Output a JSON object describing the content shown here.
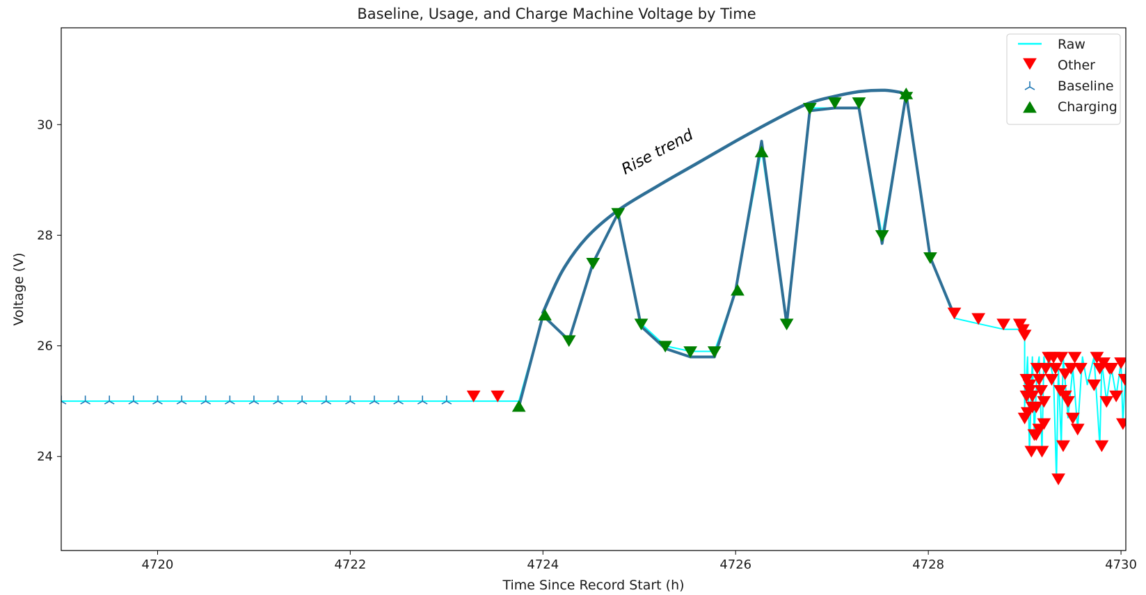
{
  "chart_data": {
    "type": "line",
    "title": "Baseline, Usage, and Charge Machine Voltage by Time",
    "xlabel": "Time Since Record Start (h)",
    "ylabel": "Voltage (V)",
    "xlim": [
      4719.0,
      4730.05
    ],
    "ylim": [
      22.3,
      31.75
    ],
    "xticks": [
      4720,
      4722,
      4724,
      4726,
      4728,
      4730
    ],
    "yticks": [
      24,
      26,
      28,
      30
    ],
    "grid": false,
    "legend_position": "top-right",
    "legend": [
      {
        "label": "Raw",
        "marker": "line",
        "color": "#00ffff"
      },
      {
        "label": "Other",
        "marker": "triangle-down",
        "color": "#ff0000"
      },
      {
        "label": "Baseline",
        "marker": "tri-up",
        "color": "#1f77b4"
      },
      {
        "label": "Charging",
        "marker": "triangle-up",
        "color": "#008000"
      }
    ],
    "annotation": {
      "text": "Rise trend"
    },
    "series": [
      {
        "name": "Raw",
        "style": "line",
        "color": "#00ffff",
        "x": [
          4719.0,
          4723.75,
          4724.0,
          4724.27,
          4724.52,
          4724.78,
          4725.02,
          4725.27,
          4725.53,
          4725.78,
          4726.0,
          4726.27,
          4726.53,
          4726.77,
          4727.03,
          4727.28,
          4727.52,
          4727.77,
          4728.02,
          4728.27,
          4728.52,
          4728.78,
          4728.95,
          4729.0,
          4729.0,
          4729.03,
          4729.05,
          4729.08,
          4729.1,
          4729.13,
          4729.15,
          4729.18,
          4729.2,
          4729.22,
          4729.25,
          4729.3,
          4729.33,
          4729.35,
          4729.38,
          4729.4,
          4729.45,
          4729.5,
          4729.55,
          4729.6,
          4729.65,
          4729.72,
          4729.78,
          4729.8,
          4729.85,
          4729.9,
          4729.95,
          4730.0,
          4730.02,
          4730.05
        ],
        "y": [
          25.0,
          25.0,
          26.55,
          26.1,
          27.5,
          28.4,
          26.4,
          26.0,
          25.9,
          25.9,
          27.0,
          29.55,
          26.4,
          30.3,
          30.3,
          30.3,
          28.0,
          30.5,
          27.6,
          26.5,
          26.4,
          26.3,
          26.3,
          26.3,
          24.9,
          25.8,
          24.1,
          25.8,
          24.4,
          25.6,
          25.8,
          24.1,
          25.8,
          25.5,
          25.8,
          25.4,
          23.6,
          25.6,
          24.2,
          25.8,
          24.7,
          25.6,
          24.5,
          25.8,
          25.3,
          25.8,
          24.2,
          25.7,
          25.0,
          25.6,
          25.1,
          25.7,
          24.6,
          25.6
        ]
      },
      {
        "name": "Other",
        "style": "triangle-down",
        "color": "#ff0000",
        "x": [
          4723.28,
          4723.53,
          4728.27,
          4728.52,
          4728.78,
          4728.95,
          4728.98,
          4729.0,
          4729.02,
          4729.03,
          4729.05,
          4729.07,
          4729.08,
          4729.1,
          4729.12,
          4729.13,
          4729.15,
          4729.17,
          4729.18,
          4729.2,
          4729.22,
          4729.25,
          4729.28,
          4729.3,
          4729.32,
          4729.35,
          4729.37,
          4729.38,
          4729.4,
          4729.42,
          4729.45,
          4729.48,
          4729.5,
          4729.52,
          4729.55,
          4729.58,
          4729.72,
          4729.75,
          4729.78,
          4729.8,
          4729.82,
          4729.85,
          4729.88,
          4729.9,
          4729.95,
          4730.0,
          4730.02,
          4730.04,
          4729.0,
          4729.05,
          4729.12,
          4729.2,
          4729.42,
          4729.02,
          4729.08,
          4729.15
        ],
        "y": [
          25.1,
          25.1,
          26.6,
          26.5,
          26.4,
          26.4,
          26.3,
          26.2,
          25.4,
          24.8,
          25.3,
          24.1,
          25.1,
          24.4,
          24.9,
          25.6,
          24.5,
          25.2,
          24.1,
          25.0,
          25.6,
          25.8,
          25.4,
          25.8,
          25.6,
          23.6,
          25.2,
          25.8,
          24.2,
          25.5,
          25.0,
          25.6,
          24.7,
          25.8,
          24.5,
          25.6,
          25.3,
          25.8,
          25.6,
          24.2,
          25.7,
          25.0,
          25.6,
          25.6,
          25.1,
          25.7,
          24.6,
          25.4,
          24.7,
          25.2,
          24.4,
          24.6,
          25.1,
          25.1,
          24.9,
          25.4
        ]
      },
      {
        "name": "Baseline",
        "style": "tri-up",
        "color": "#1f77b4",
        "x": [
          4719.0,
          4719.25,
          4719.5,
          4719.75,
          4720.0,
          4720.25,
          4720.5,
          4720.75,
          4721.0,
          4721.25,
          4721.5,
          4721.75,
          4722.0,
          4722.25,
          4722.5,
          4722.75,
          4723.0
        ],
        "y": [
          25.0,
          25.0,
          25.0,
          25.0,
          25.0,
          25.0,
          25.0,
          25.0,
          25.0,
          25.0,
          25.0,
          25.0,
          25.0,
          25.0,
          25.0,
          25.0,
          25.0
        ]
      },
      {
        "name": "Charging",
        "style": "triangle-up",
        "color": "#008000",
        "x": [
          4723.75,
          4724.02,
          4726.02,
          4726.27,
          4727.77
        ],
        "y": [
          24.9,
          26.55,
          27.0,
          29.5,
          30.55
        ]
      },
      {
        "name": "Charging (down markers)",
        "style": "triangle-down",
        "color": "#008000",
        "x": [
          4724.27,
          4724.52,
          4724.78,
          4725.02,
          4725.27,
          4725.53,
          4725.78,
          4726.53,
          4726.77,
          4727.03,
          4727.28,
          4727.52,
          4727.77,
          4728.02
        ],
        "y": [
          26.1,
          27.5,
          28.4,
          26.4,
          26.0,
          25.9,
          25.9,
          26.4,
          30.3,
          30.4,
          30.4,
          28.0,
          30.5,
          27.6
        ]
      },
      {
        "name": "Highlighted usage",
        "style": "thick-line",
        "color": "#2e6f96",
        "x": [
          4723.75,
          4724.0,
          4724.27,
          4724.52,
          4724.78,
          4725.02,
          4725.27,
          4725.53,
          4725.78,
          4726.0,
          4726.27,
          4726.53,
          4726.77,
          4727.03,
          4727.28,
          4727.52,
          4727.77,
          4728.02,
          4728.27
        ],
        "y": [
          24.9,
          26.55,
          26.1,
          27.5,
          28.4,
          26.35,
          25.95,
          25.8,
          25.8,
          27.0,
          29.7,
          26.4,
          30.25,
          30.3,
          30.3,
          27.85,
          30.55,
          27.6,
          26.55
        ]
      },
      {
        "name": "Rise trend",
        "style": "thick-curve",
        "color": "#2e6f96",
        "x": [
          4724.0,
          4724.2,
          4724.45,
          4724.78,
          4725.2,
          4725.6,
          4726.0,
          4726.4,
          4726.75,
          4727.05,
          4727.3,
          4727.55,
          4727.72
        ],
        "y": [
          26.6,
          27.35,
          27.95,
          28.45,
          28.9,
          29.3,
          29.7,
          30.08,
          30.38,
          30.52,
          30.6,
          30.62,
          30.58
        ]
      }
    ]
  }
}
